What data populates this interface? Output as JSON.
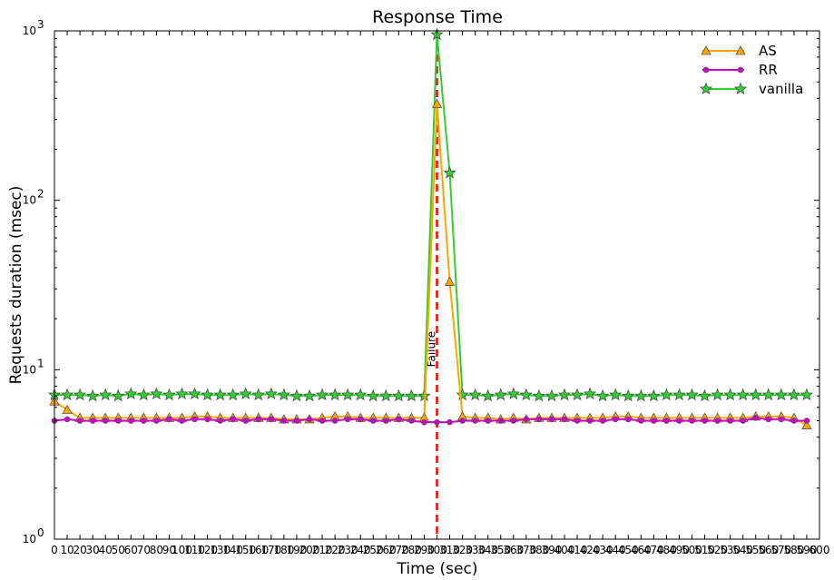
{
  "chart_data": {
    "type": "line",
    "title": "Response Time",
    "xlabel": "Time (sec)",
    "ylabel": "Requests duration (msec)",
    "xlim": [
      0,
      600
    ],
    "ylim": [
      1,
      1000
    ],
    "yscale": "log",
    "xticks": [
      0,
      10,
      20,
      30,
      40,
      50,
      60,
      70,
      80,
      90,
      100,
      110,
      120,
      130,
      140,
      150,
      160,
      170,
      180,
      190,
      200,
      210,
      220,
      230,
      240,
      250,
      260,
      270,
      280,
      290,
      300,
      310,
      320,
      330,
      340,
      350,
      360,
      370,
      380,
      390,
      400,
      410,
      420,
      430,
      440,
      450,
      460,
      470,
      480,
      490,
      500,
      510,
      520,
      530,
      540,
      550,
      560,
      570,
      580,
      590,
      600
    ],
    "yticks": [
      {
        "base": "10",
        "exp": "0"
      },
      {
        "base": "10",
        "exp": "1"
      },
      {
        "base": "10",
        "exp": "2"
      },
      {
        "base": "10",
        "exp": "3"
      }
    ],
    "legend_position": "top-right",
    "grid": false,
    "x": [
      0,
      10,
      20,
      30,
      40,
      50,
      60,
      70,
      80,
      90,
      100,
      110,
      120,
      130,
      140,
      150,
      160,
      170,
      180,
      190,
      200,
      210,
      220,
      230,
      240,
      250,
      260,
      270,
      280,
      290,
      300,
      310,
      320,
      330,
      340,
      350,
      360,
      370,
      380,
      390,
      400,
      410,
      420,
      430,
      440,
      450,
      460,
      470,
      480,
      490,
      500,
      510,
      520,
      530,
      540,
      550,
      560,
      570,
      580,
      590
    ],
    "series": [
      {
        "name": "AS",
        "color": "#ffa500",
        "marker": "triangle",
        "values": [
          6.5,
          5.8,
          5.2,
          5.2,
          5.2,
          5.2,
          5.2,
          5.2,
          5.2,
          5.2,
          5.2,
          5.3,
          5.3,
          5.2,
          5.2,
          5.2,
          5.2,
          5.2,
          5.1,
          5.1,
          5.1,
          5.2,
          5.3,
          5.3,
          5.2,
          5.2,
          5.2,
          5.2,
          5.2,
          5.2,
          370,
          33,
          5.3,
          5.2,
          5.2,
          5.1,
          5.2,
          5.1,
          5.2,
          5.2,
          5.2,
          5.2,
          5.2,
          5.2,
          5.3,
          5.3,
          5.2,
          5.2,
          5.2,
          5.2,
          5.2,
          5.2,
          5.2,
          5.2,
          5.2,
          5.3,
          5.3,
          5.3,
          5.2,
          4.7
        ]
      },
      {
        "name": "RR",
        "color": "#cc00cc",
        "marker": "circle",
        "values": [
          5.0,
          5.1,
          5.0,
          5.0,
          5.0,
          5.0,
          5.0,
          5.0,
          5.0,
          5.1,
          5.0,
          5.1,
          5.1,
          5.0,
          5.1,
          5.0,
          5.1,
          5.1,
          5.0,
          5.0,
          5.1,
          5.0,
          5.0,
          5.1,
          5.1,
          5.0,
          5.0,
          5.1,
          5.0,
          4.9,
          4.9,
          4.9,
          5.0,
          5.0,
          5.0,
          5.0,
          5.0,
          5.1,
          5.1,
          5.1,
          5.1,
          5.0,
          5.0,
          5.0,
          5.1,
          5.1,
          5.0,
          5.0,
          5.0,
          5.0,
          5.0,
          5.0,
          5.0,
          5.0,
          5.0,
          5.2,
          5.1,
          5.1,
          5.0,
          5.0
        ]
      },
      {
        "name": "vanilla",
        "color": "#33cc33",
        "marker": "star",
        "values": [
          7.1,
          7.1,
          7.1,
          7.0,
          7.1,
          7.0,
          7.2,
          7.1,
          7.2,
          7.1,
          7.2,
          7.2,
          7.1,
          7.1,
          7.1,
          7.2,
          7.1,
          7.2,
          7.1,
          7.0,
          7.0,
          7.1,
          7.1,
          7.1,
          7.1,
          7.0,
          7.0,
          7.0,
          7.0,
          7.0,
          950,
          145,
          7.1,
          7.1,
          7.0,
          7.1,
          7.2,
          7.1,
          7.0,
          7.0,
          7.1,
          7.1,
          7.2,
          7.0,
          7.1,
          7.0,
          7.0,
          7.0,
          7.1,
          7.1,
          7.1,
          7.0,
          7.1,
          7.1,
          7.1,
          7.1,
          7.1,
          7.1,
          7.1,
          7.1
        ]
      }
    ],
    "annotations": [
      {
        "type": "vline",
        "x": 300,
        "color": "#ff0000",
        "style": "dashed",
        "label": "Failure"
      }
    ]
  }
}
